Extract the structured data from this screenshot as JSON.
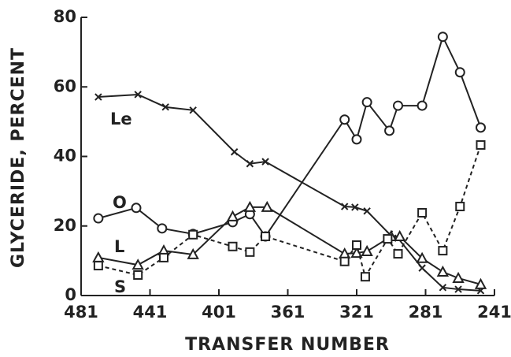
{
  "chart_data": {
    "type": "line",
    "xlabel": "TRANSFER NUMBER",
    "ylabel": "GLYCERIDE, PERCENT",
    "xlim": [
      481,
      241
    ],
    "xticks": [
      481,
      441,
      401,
      361,
      321,
      281,
      241
    ],
    "ylim": [
      0,
      80
    ],
    "yticks": [
      0,
      20,
      40,
      60,
      80
    ],
    "series": [
      {
        "name": "Le",
        "color": "#222",
        "marker": "x",
        "linestyle": "solid",
        "x": [
          471,
          448,
          432,
          416,
          392,
          383,
          374,
          328,
          322,
          315,
          302,
          297,
          283,
          271,
          262,
          249
        ],
        "values": [
          57.1,
          57.8,
          54.2,
          53.3,
          41.3,
          37.9,
          38.5,
          25.6,
          25.4,
          24.3,
          17.7,
          16.5,
          7.9,
          2.3,
          1.8,
          1.4
        ]
      },
      {
        "name": "O",
        "color": "#222",
        "marker": "circle",
        "linestyle": "solid",
        "x": [
          471,
          449,
          434,
          416,
          393,
          383,
          374,
          328,
          321,
          315,
          302,
          297,
          283,
          271,
          261,
          249
        ],
        "values": [
          22.2,
          25.2,
          19.3,
          17.7,
          21.1,
          23.4,
          17.0,
          50.6,
          44.9,
          55.6,
          47.4,
          54.6,
          54.6,
          74.4,
          64.2,
          48.3
        ]
      },
      {
        "name": "L",
        "color": "#222",
        "marker": "triangle",
        "linestyle": "solid",
        "x": [
          471,
          448,
          433,
          416,
          393,
          383,
          373,
          328,
          321,
          315,
          301,
          296,
          283,
          271,
          262,
          249
        ],
        "values": [
          10.9,
          8.8,
          12.9,
          11.8,
          22.7,
          25.4,
          25.4,
          12.0,
          12.2,
          12.7,
          17.0,
          17.0,
          10.7,
          6.8,
          5.0,
          3.2
        ]
      },
      {
        "name": "S",
        "color": "#222",
        "marker": "square",
        "linestyle": "dashed",
        "x": [
          471,
          448,
          433,
          416,
          393,
          383,
          374,
          328,
          321,
          316,
          303,
          297,
          283,
          271,
          261,
          249
        ],
        "values": [
          8.6,
          5.9,
          10.9,
          17.5,
          14.1,
          12.5,
          17.0,
          9.8,
          14.5,
          5.4,
          16.3,
          12.0,
          23.8,
          12.9,
          25.6,
          43.3
        ]
      }
    ]
  }
}
